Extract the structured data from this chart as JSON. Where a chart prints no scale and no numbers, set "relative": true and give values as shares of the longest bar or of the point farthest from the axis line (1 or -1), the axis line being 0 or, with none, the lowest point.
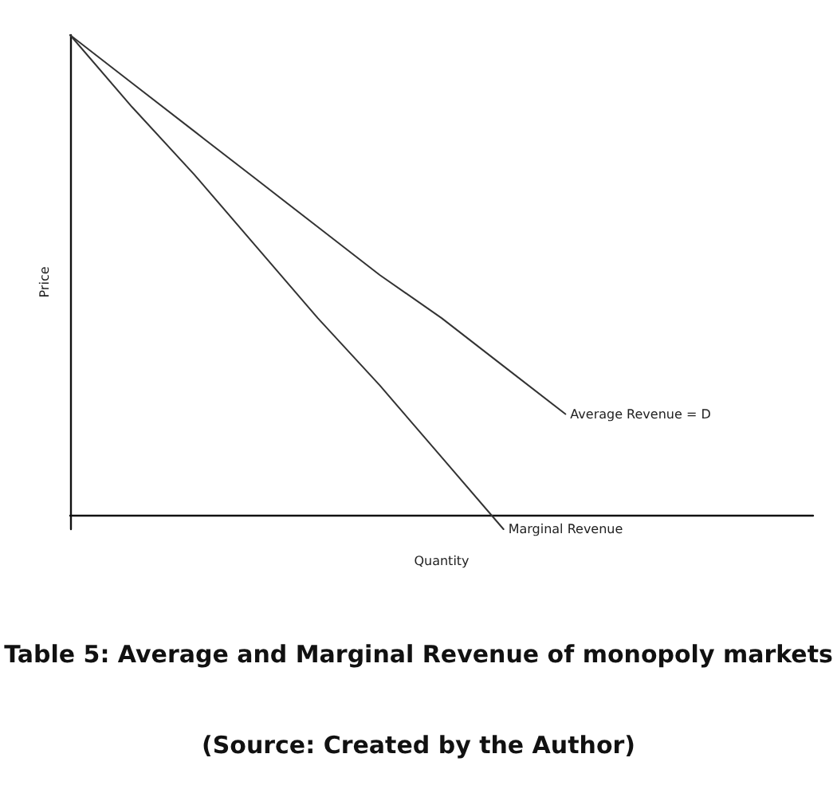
{
  "chart_data": {
    "type": "line",
    "title": "Table 5: Average and Marginal Revenue of monopoly markets",
    "xlabel": "Quantity",
    "ylabel": "Price",
    "annotations": [
      "(Source: Created by the Author)"
    ],
    "relative": true,
    "categories": [
      null,
      null,
      null,
      null,
      null,
      null,
      null,
      null,
      null,
      null,
      null,
      null,
      null
    ],
    "series": [
      {
        "name": "Average Revenue = D",
        "color": "#333333",
        "values": [
          1,
          0.9,
          0.8,
          0.7,
          0.6,
          0.5,
          0.41,
          0.31,
          0.21,
          null,
          null,
          null,
          null
        ]
      },
      {
        "name": "Marginal Revenue",
        "color": "#333333",
        "values": [
          1,
          0.85,
          0.71,
          0.56,
          0.41,
          0.27,
          0.12,
          -0.03,
          null,
          null,
          null,
          null,
          null
        ]
      }
    ],
    "legend": false,
    "marker": "none",
    "line_style": "solid",
    "grid": false
  }
}
